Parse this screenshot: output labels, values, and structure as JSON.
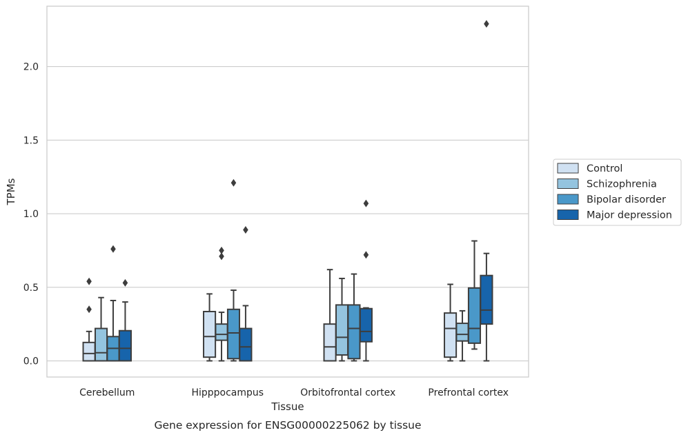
{
  "chart_data": {
    "type": "box",
    "xlabel": "Tissue",
    "ylabel": "TPMs",
    "caption": "Gene expression for ENSG00000225062 by tissue",
    "ylim": [
      -0.11,
      2.41
    ],
    "yticks": [
      0.0,
      0.5,
      1.0,
      1.5,
      2.0
    ],
    "ytick_labels": [
      "0.0",
      "0.5",
      "1.0",
      "1.5",
      "2.0"
    ],
    "grid": "horizontal",
    "legend_position": "right",
    "categories": [
      "Cerebellum",
      "Hipppocampus",
      "Orbitofrontal cortex",
      "Prefrontal cortex"
    ],
    "series": [
      {
        "name": "Control",
        "color": "#d0e1f2",
        "boxes": [
          {
            "whislo": 0.0,
            "q1": 0.0,
            "med": 0.05,
            "q3": 0.125,
            "whishi": 0.2,
            "fliers": [
              0.35,
              0.54
            ]
          },
          {
            "whislo": 0.0,
            "q1": 0.025,
            "med": 0.165,
            "q3": 0.335,
            "whishi": 0.455,
            "fliers": []
          },
          {
            "whislo": 0.0,
            "q1": 0.0,
            "med": 0.095,
            "q3": 0.25,
            "whishi": 0.62,
            "fliers": []
          },
          {
            "whislo": 0.0,
            "q1": 0.025,
            "med": 0.22,
            "q3": 0.325,
            "whishi": 0.52,
            "fliers": []
          }
        ]
      },
      {
        "name": "Schizophrenia",
        "color": "#94c4df",
        "boxes": [
          {
            "whislo": 0.0,
            "q1": 0.0,
            "med": 0.055,
            "q3": 0.22,
            "whishi": 0.43,
            "fliers": []
          },
          {
            "whislo": 0.0,
            "q1": 0.14,
            "med": 0.18,
            "q3": 0.25,
            "whishi": 0.33,
            "fliers": [
              0.71,
              0.75
            ]
          },
          {
            "whislo": 0.0,
            "q1": 0.04,
            "med": 0.16,
            "q3": 0.38,
            "whishi": 0.56,
            "fliers": []
          },
          {
            "whislo": 0.0,
            "q1": 0.135,
            "med": 0.18,
            "q3": 0.255,
            "whishi": 0.34,
            "fliers": []
          }
        ]
      },
      {
        "name": "Bipolar disorder",
        "color": "#4a98c9",
        "boxes": [
          {
            "whislo": 0.0,
            "q1": 0.0,
            "med": 0.085,
            "q3": 0.165,
            "whishi": 0.41,
            "fliers": [
              0.76
            ]
          },
          {
            "whislo": 0.0,
            "q1": 0.015,
            "med": 0.19,
            "q3": 0.35,
            "whishi": 0.48,
            "fliers": [
              1.21
            ]
          },
          {
            "whislo": 0.0,
            "q1": 0.015,
            "med": 0.22,
            "q3": 0.38,
            "whishi": 0.59,
            "fliers": []
          },
          {
            "whislo": 0.08,
            "q1": 0.12,
            "med": 0.22,
            "q3": 0.495,
            "whishi": 0.815,
            "fliers": []
          }
        ]
      },
      {
        "name": "Major depression",
        "color": "#1764ab",
        "boxes": [
          {
            "whislo": 0.0,
            "q1": 0.0,
            "med": 0.085,
            "q3": 0.205,
            "whishi": 0.4,
            "fliers": [
              0.53
            ]
          },
          {
            "whislo": 0.0,
            "q1": 0.0,
            "med": 0.095,
            "q3": 0.22,
            "whishi": 0.375,
            "fliers": [
              0.89
            ]
          },
          {
            "whislo": 0.0,
            "q1": 0.13,
            "med": 0.2,
            "q3": 0.355,
            "whishi": 0.36,
            "fliers": [
              0.72,
              1.07
            ]
          },
          {
            "whislo": 0.0,
            "q1": 0.25,
            "med": 0.345,
            "q3": 0.58,
            "whishi": 0.73,
            "fliers": [
              2.29
            ]
          }
        ]
      }
    ]
  }
}
